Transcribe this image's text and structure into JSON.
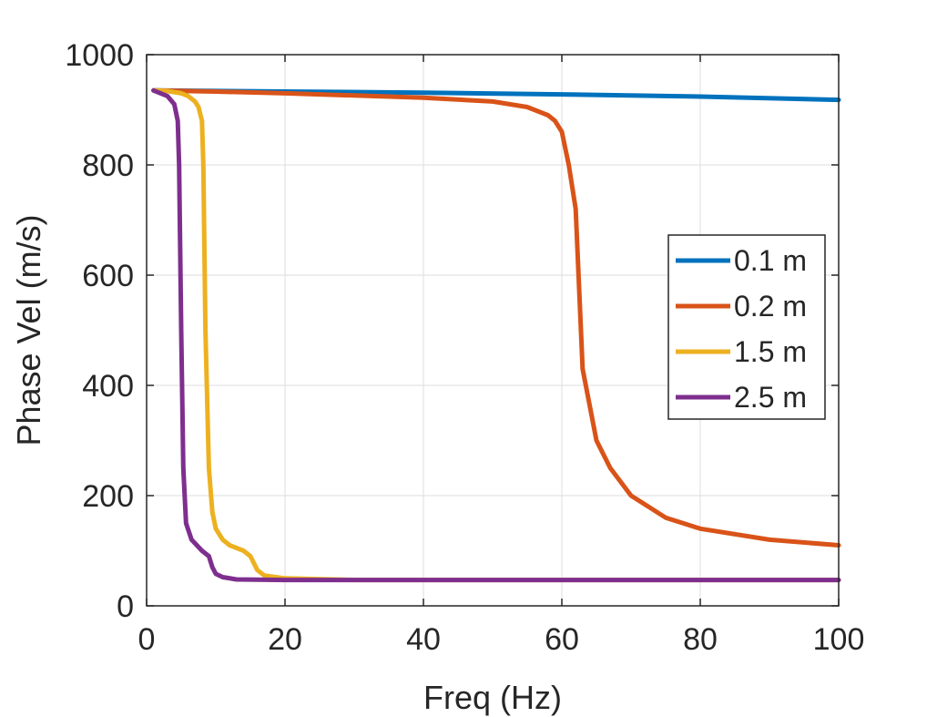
{
  "chart_data": {
    "type": "line",
    "title": "",
    "xlabel": "Freq (Hz)",
    "ylabel": "Phase Vel (m/s)",
    "xlim": [
      0,
      100
    ],
    "ylim": [
      0,
      1000
    ],
    "xticks": [
      "0",
      "20",
      "40",
      "60",
      "80",
      "100"
    ],
    "yticks": [
      "0",
      "200",
      "400",
      "600",
      "800",
      "1000"
    ],
    "grid": true,
    "legend_position": "right-middle",
    "series": [
      {
        "name": "0.1 m",
        "color": "#0072BD",
        "x": [
          1,
          20,
          40,
          60,
          80,
          100
        ],
        "y": [
          935,
          933,
          931,
          928,
          924,
          918
        ]
      },
      {
        "name": "0.2 m",
        "color": "#D95319",
        "x": [
          1,
          10,
          20,
          30,
          40,
          50,
          55,
          58,
          59,
          60,
          61,
          62,
          63,
          65,
          67,
          70,
          75,
          80,
          90,
          100
        ],
        "y": [
          935,
          933,
          930,
          926,
          922,
          915,
          905,
          890,
          880,
          860,
          800,
          720,
          430,
          300,
          250,
          200,
          160,
          140,
          120,
          110
        ]
      },
      {
        "name": "1.5 m",
        "color": "#EDB120",
        "x": [
          1,
          3,
          5,
          6,
          7,
          7.5,
          8,
          8.2,
          8.5,
          9,
          9.5,
          10,
          11,
          12,
          14,
          15,
          16,
          17,
          20,
          30,
          40,
          60,
          80,
          100
        ],
        "y": [
          935,
          934,
          930,
          925,
          915,
          905,
          880,
          800,
          500,
          250,
          170,
          140,
          120,
          110,
          100,
          90,
          65,
          55,
          50,
          47,
          47,
          47,
          47,
          47
        ]
      },
      {
        "name": "2.5 m",
        "color": "#7E2F8E",
        "x": [
          1,
          3,
          4,
          4.5,
          4.7,
          5,
          5.3,
          5.7,
          6.5,
          8,
          9,
          9.5,
          10,
          11,
          13,
          20,
          40,
          60,
          80,
          100
        ],
        "y": [
          935,
          925,
          910,
          880,
          800,
          500,
          250,
          150,
          120,
          100,
          90,
          70,
          58,
          52,
          48,
          47,
          47,
          47,
          47,
          47
        ]
      }
    ]
  }
}
